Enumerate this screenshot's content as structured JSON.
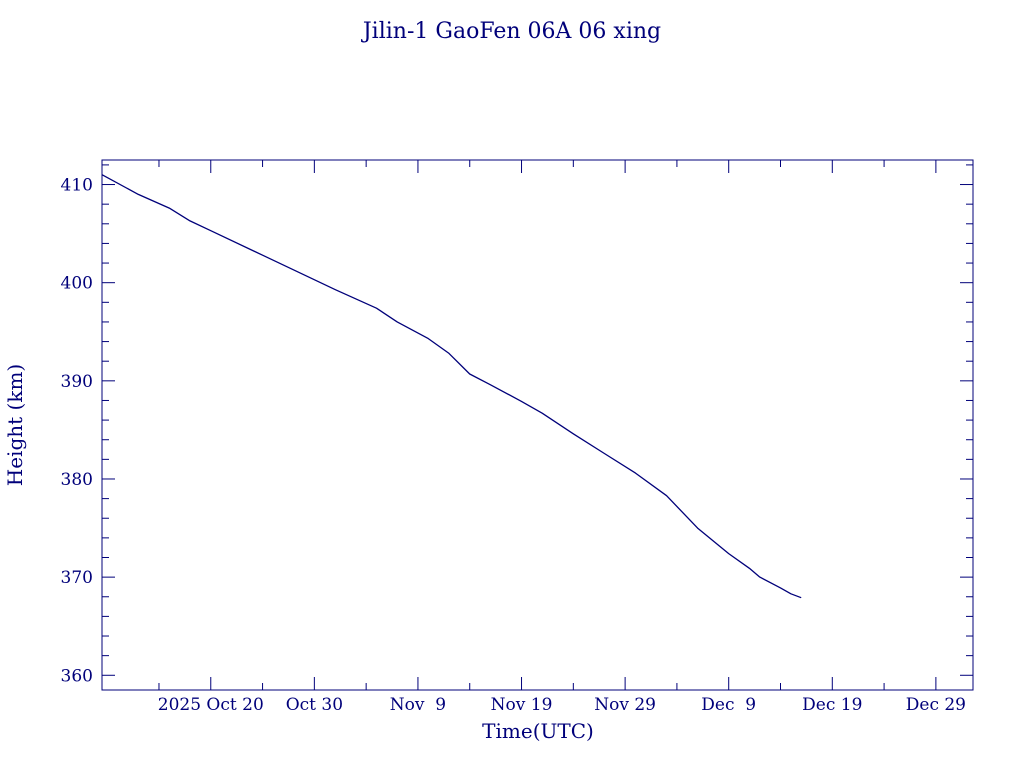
{
  "chart_data": {
    "type": "line",
    "title": "Jilin-1 GaoFen 06A 06 xing",
    "xlabel": "Time(UTC)",
    "ylabel": "Height (km)",
    "color": "#00007a",
    "xlim": [
      "2025-10-09T12:00",
      "2026-01-01T14:00"
    ],
    "ylim": [
      358.5,
      412.5
    ],
    "grid": false,
    "x_major_ticks": [
      {
        "date": "2025-10-20",
        "label": "2025 Oct 20"
      },
      {
        "date": "2025-10-30",
        "label": "Oct 30"
      },
      {
        "date": "2025-11-09",
        "label": "Nov  9"
      },
      {
        "date": "2025-11-19",
        "label": "Nov 19"
      },
      {
        "date": "2025-11-29",
        "label": "Nov 29"
      },
      {
        "date": "2025-12-09",
        "label": "Dec  9"
      },
      {
        "date": "2025-12-19",
        "label": "Dec 19"
      },
      {
        "date": "2025-12-29",
        "label": "Dec 29"
      }
    ],
    "x_minor_tick_dates": [
      "2025-10-15",
      "2025-10-25",
      "2025-11-04",
      "2025-11-14",
      "2025-11-24",
      "2025-12-04",
      "2025-12-14",
      "2025-12-24"
    ],
    "y_major_ticks": [
      {
        "value": 360,
        "label": "360"
      },
      {
        "value": 370,
        "label": "370"
      },
      {
        "value": 380,
        "label": "380"
      },
      {
        "value": 390,
        "label": "390"
      },
      {
        "value": 400,
        "label": "400"
      },
      {
        "value": 410,
        "label": "410"
      }
    ],
    "y_minor_step": 2,
    "series": [
      {
        "x": [
          "2025-10-09T12:00",
          "2025-10-13",
          "2025-10-16",
          "2025-10-18",
          "2025-10-20",
          "2025-10-25",
          "2025-10-29",
          "2025-11-01",
          "2025-11-05",
          "2025-11-07",
          "2025-11-10",
          "2025-11-12",
          "2025-11-14",
          "2025-11-16",
          "2025-11-19",
          "2025-11-21",
          "2025-11-24",
          "2025-11-27",
          "2025-11-30",
          "2025-12-03",
          "2025-12-06",
          "2025-12-09",
          "2025-12-11",
          "2025-12-12",
          "2025-12-14",
          "2025-12-15",
          "2025-12-16"
        ],
        "y": [
          411.0,
          409.0,
          407.6,
          406.3,
          405.3,
          402.8,
          400.8,
          399.3,
          397.4,
          396.0,
          394.3,
          392.8,
          390.7,
          389.6,
          387.9,
          386.7,
          384.6,
          382.6,
          380.6,
          378.3,
          375.0,
          372.4,
          370.9,
          370.0,
          368.9,
          368.3,
          367.9
        ]
      }
    ]
  }
}
